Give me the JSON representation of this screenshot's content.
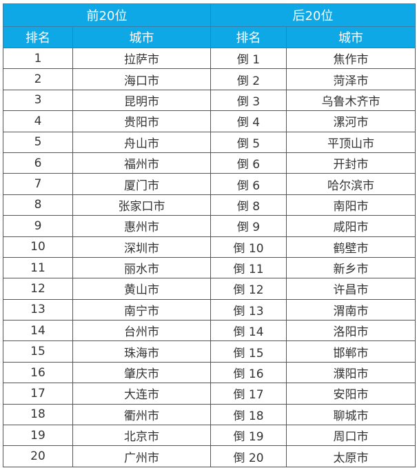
{
  "header": {
    "top_group": "前20位",
    "bottom_group": "后20位",
    "rank_col": "排名",
    "city_col": "城市"
  },
  "colors": {
    "header_bg": "#0fa8e6",
    "header_text": "#ffffff"
  },
  "rows": [
    {
      "rank": "1",
      "city": "拉萨市",
      "rev_rank": "倒 1",
      "rev_city": "焦作市"
    },
    {
      "rank": "2",
      "city": "海口市",
      "rev_rank": "倒 2",
      "rev_city": "菏泽市"
    },
    {
      "rank": "3",
      "city": "昆明市",
      "rev_rank": "倒 3",
      "rev_city": "乌鲁木齐市"
    },
    {
      "rank": "4",
      "city": "贵阳市",
      "rev_rank": "倒 4",
      "rev_city": "漯河市"
    },
    {
      "rank": "5",
      "city": "舟山市",
      "rev_rank": "倒 5",
      "rev_city": "平顶山市"
    },
    {
      "rank": "6",
      "city": "福州市",
      "rev_rank": "倒 6",
      "rev_city": "开封市"
    },
    {
      "rank": "7",
      "city": "厦门市",
      "rev_rank": "倒 6",
      "rev_city": "哈尔滨市"
    },
    {
      "rank": "8",
      "city": "张家口市",
      "rev_rank": "倒 8",
      "rev_city": "南阳市"
    },
    {
      "rank": "9",
      "city": "惠州市",
      "rev_rank": "倒 9",
      "rev_city": "咸阳市"
    },
    {
      "rank": "10",
      "city": "深圳市",
      "rev_rank": "倒 10",
      "rev_city": "鹤壁市"
    },
    {
      "rank": "11",
      "city": "丽水市",
      "rev_rank": "倒 11",
      "rev_city": "新乡市"
    },
    {
      "rank": "12",
      "city": "黄山市",
      "rev_rank": "倒 12",
      "rev_city": "许昌市"
    },
    {
      "rank": "13",
      "city": "南宁市",
      "rev_rank": "倒 13",
      "rev_city": "渭南市"
    },
    {
      "rank": "14",
      "city": "台州市",
      "rev_rank": "倒 14",
      "rev_city": "洛阳市"
    },
    {
      "rank": "15",
      "city": "珠海市",
      "rev_rank": "倒 15",
      "rev_city": "邯郸市"
    },
    {
      "rank": "16",
      "city": "肇庆市",
      "rev_rank": "倒 16",
      "rev_city": "濮阳市"
    },
    {
      "rank": "17",
      "city": "大连市",
      "rev_rank": "倒 17",
      "rev_city": "安阳市"
    },
    {
      "rank": "18",
      "city": "衢州市",
      "rev_rank": "倒 18",
      "rev_city": "聊城市"
    },
    {
      "rank": "19",
      "city": "北京市",
      "rev_rank": "倒 19",
      "rev_city": "周口市"
    },
    {
      "rank": "20",
      "city": "广州市",
      "rev_rank": "倒 20",
      "rev_city": "太原市"
    }
  ]
}
